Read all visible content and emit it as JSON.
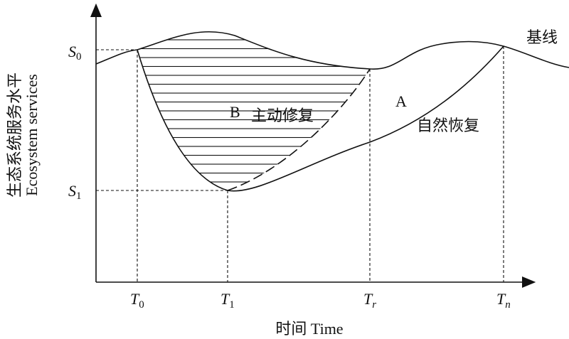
{
  "y_axis": {
    "label_zh": "生态系统服务水平",
    "label_en": "Ecosystem services",
    "ticks": [
      {
        "main": "S",
        "sub": "0"
      },
      {
        "main": "S",
        "sub": "1"
      }
    ]
  },
  "x_axis": {
    "label": "时间 Time",
    "ticks": [
      {
        "main": "T",
        "sub": "0"
      },
      {
        "main": "T",
        "sub": "1"
      },
      {
        "main": "T",
        "sub": "r"
      },
      {
        "main": "T",
        "sub": "n"
      }
    ]
  },
  "curves": {
    "baseline": "基线",
    "natural": {
      "letter": "A",
      "label": "自然恢复"
    },
    "active": {
      "letter": "B",
      "label": "主动修复"
    }
  }
}
